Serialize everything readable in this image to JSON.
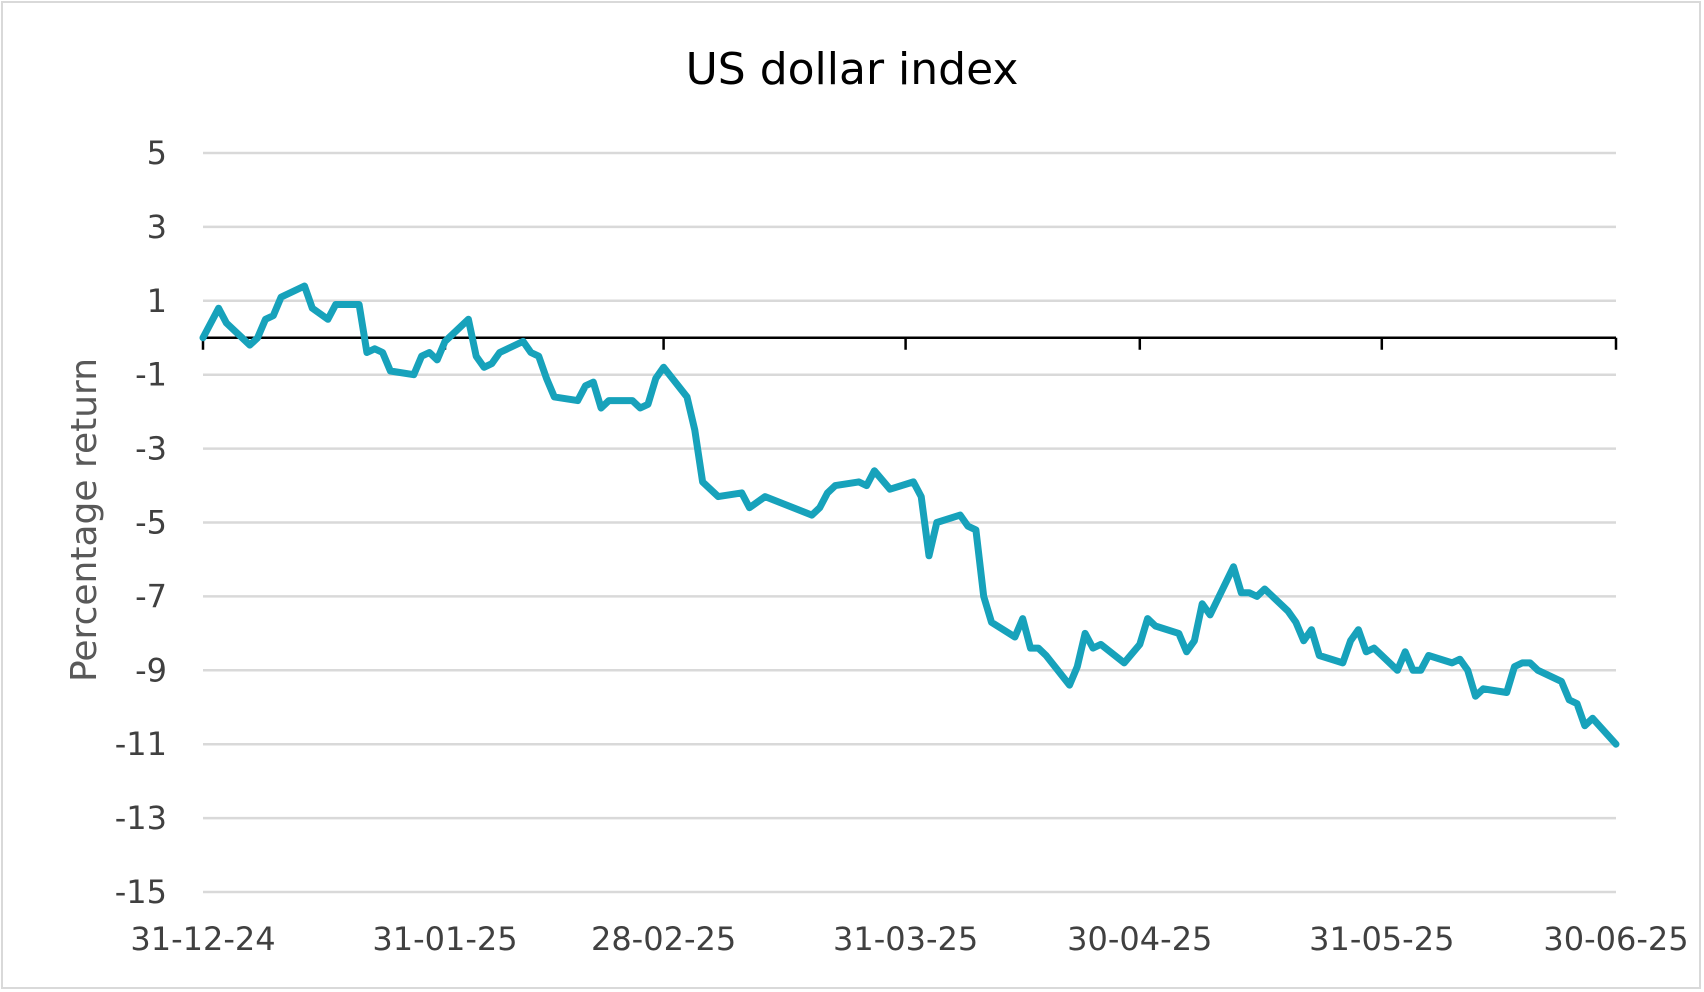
{
  "chart_data": {
    "type": "line",
    "title": "US dollar index",
    "xlabel": "",
    "ylabel": "Percentage return",
    "ylim": [
      -15,
      5
    ],
    "y_ticks": [
      5,
      3,
      1,
      -1,
      -3,
      -5,
      -7,
      -9,
      -11,
      -13,
      -15
    ],
    "x_tick_labels": [
      "31-12-24",
      "31-01-25",
      "28-02-25",
      "31-03-25",
      "30-04-25",
      "31-05-25",
      "30-06-25"
    ],
    "x_tick_days": [
      0,
      31,
      59,
      90,
      120,
      151,
      181
    ],
    "grid": true,
    "legend": "none",
    "line_color": "#17a2bb",
    "series": [
      {
        "points": [
          [
            0,
            0
          ],
          [
            2,
            0.8
          ],
          [
            3,
            0.4
          ],
          [
            6,
            -0.2
          ],
          [
            7,
            0.0
          ],
          [
            8,
            0.5
          ],
          [
            9,
            0.6
          ],
          [
            10,
            1.1
          ],
          [
            13,
            1.4
          ],
          [
            14,
            0.8
          ],
          [
            16,
            0.5
          ],
          [
            17,
            0.9
          ],
          [
            20,
            0.9
          ],
          [
            21,
            -0.4
          ],
          [
            22,
            -0.3
          ],
          [
            23,
            -0.4
          ],
          [
            24,
            -0.9
          ],
          [
            27,
            -1.0
          ],
          [
            28,
            -0.5
          ],
          [
            29,
            -0.4
          ],
          [
            30,
            -0.6
          ],
          [
            31,
            -0.1
          ],
          [
            34,
            0.5
          ],
          [
            35,
            -0.5
          ],
          [
            36,
            -0.8
          ],
          [
            37,
            -0.7
          ],
          [
            38,
            -0.4
          ],
          [
            41,
            -0.1
          ],
          [
            42,
            -0.4
          ],
          [
            43,
            -0.5
          ],
          [
            44,
            -1.1
          ],
          [
            45,
            -1.6
          ],
          [
            48,
            -1.7
          ],
          [
            49,
            -1.3
          ],
          [
            50,
            -1.2
          ],
          [
            51,
            -1.9
          ],
          [
            52,
            -1.7
          ],
          [
            55,
            -1.7
          ],
          [
            56,
            -1.9
          ],
          [
            57,
            -1.8
          ],
          [
            58,
            -1.1
          ],
          [
            59,
            -0.8
          ],
          [
            62,
            -1.6
          ],
          [
            63,
            -2.5
          ],
          [
            64,
            -3.9
          ],
          [
            66,
            -4.3
          ],
          [
            69,
            -4.2
          ],
          [
            70,
            -4.6
          ],
          [
            72,
            -4.3
          ],
          [
            78,
            -4.8
          ],
          [
            79,
            -4.6
          ],
          [
            80,
            -4.2
          ],
          [
            81,
            -4.0
          ],
          [
            84,
            -3.9
          ],
          [
            85,
            -4.0
          ],
          [
            86,
            -3.6
          ],
          [
            88,
            -4.1
          ],
          [
            91,
            -3.9
          ],
          [
            92,
            -4.3
          ],
          [
            93,
            -5.9
          ],
          [
            94,
            -5.0
          ],
          [
            97,
            -4.8
          ],
          [
            98,
            -5.1
          ],
          [
            99,
            -5.2
          ],
          [
            100,
            -7.0
          ],
          [
            101,
            -7.7
          ],
          [
            104,
            -8.1
          ],
          [
            105,
            -7.6
          ],
          [
            106,
            -8.4
          ],
          [
            107,
            -8.4
          ],
          [
            108,
            -8.6
          ],
          [
            111,
            -9.4
          ],
          [
            112,
            -8.9
          ],
          [
            113,
            -8.0
          ],
          [
            114,
            -8.4
          ],
          [
            115,
            -8.3
          ],
          [
            118,
            -8.8
          ],
          [
            120,
            -8.3
          ],
          [
            121,
            -7.6
          ],
          [
            122,
            -7.8
          ],
          [
            125,
            -8.0
          ],
          [
            126,
            -8.5
          ],
          [
            127,
            -8.2
          ],
          [
            128,
            -7.2
          ],
          [
            129,
            -7.5
          ],
          [
            132,
            -6.2
          ],
          [
            133,
            -6.9
          ],
          [
            134,
            -6.9
          ],
          [
            135,
            -7.0
          ],
          [
            136,
            -6.8
          ],
          [
            139,
            -7.4
          ],
          [
            140,
            -7.7
          ],
          [
            141,
            -8.2
          ],
          [
            142,
            -7.9
          ],
          [
            143,
            -8.6
          ],
          [
            146,
            -8.8
          ],
          [
            147,
            -8.2
          ],
          [
            148,
            -7.9
          ],
          [
            149,
            -8.5
          ],
          [
            150,
            -8.4
          ],
          [
            153,
            -9.0
          ],
          [
            154,
            -8.5
          ],
          [
            155,
            -9.0
          ],
          [
            156,
            -9.0
          ],
          [
            157,
            -8.6
          ],
          [
            160,
            -8.8
          ],
          [
            161,
            -8.7
          ],
          [
            162,
            -9.0
          ],
          [
            163,
            -9.7
          ],
          [
            164,
            -9.5
          ],
          [
            167,
            -9.6
          ],
          [
            168,
            -8.9
          ],
          [
            169,
            -8.8
          ],
          [
            170,
            -8.8
          ],
          [
            171,
            -9.0
          ],
          [
            174,
            -9.3
          ],
          [
            175,
            -9.8
          ],
          [
            176,
            -9.9
          ],
          [
            177,
            -10.5
          ],
          [
            178,
            -10.3
          ],
          [
            181,
            -11.0
          ]
        ]
      }
    ]
  }
}
